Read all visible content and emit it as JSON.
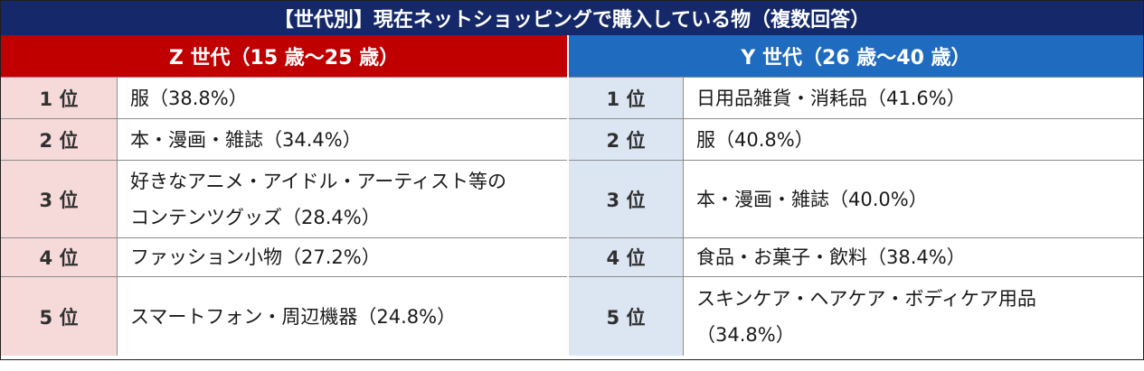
{
  "title": "【世代別】現在ネットショッピングで購入している物（複数回答）",
  "z_generation": {
    "header": "Z 世代（15 歳～25 歳）",
    "rows": [
      {
        "rank": "1 位",
        "item": "服（38.8%）"
      },
      {
        "rank": "2 位",
        "item": "本・漫画・雑誌（34.4%）"
      },
      {
        "rank": "3 位",
        "item": "好きなアニメ・アイドル・アーティスト等のコンテンツグッズ（28.4%）"
      },
      {
        "rank": "4 位",
        "item": "ファッション小物（27.2%）"
      },
      {
        "rank": "5 位",
        "item": "スマートフォン・周辺機器（24.8%）"
      }
    ]
  },
  "y_generation": {
    "header": "Y 世代（26 歳～40 歳）",
    "rows": [
      {
        "rank": "1 位",
        "item": "日用品雑貨・消耗品（41.6%）"
      },
      {
        "rank": "2 位",
        "item": "服（40.8%）"
      },
      {
        "rank": "3 位",
        "item": "本・漫画・雑誌（40.0%）"
      },
      {
        "rank": "4 位",
        "item": "食品・お菓子・飲料（38.4%）"
      },
      {
        "rank": "5 位",
        "item": "スキンケア・ヘアケア・ボディケア用品（34.8%）"
      }
    ]
  },
  "colors": {
    "title_bg": "#15296a",
    "z_header_bg": "#c00000",
    "y_header_bg": "#1f6bbf",
    "z_rank_bg": "#f6d9d9",
    "y_rank_bg": "#dce6f3"
  }
}
